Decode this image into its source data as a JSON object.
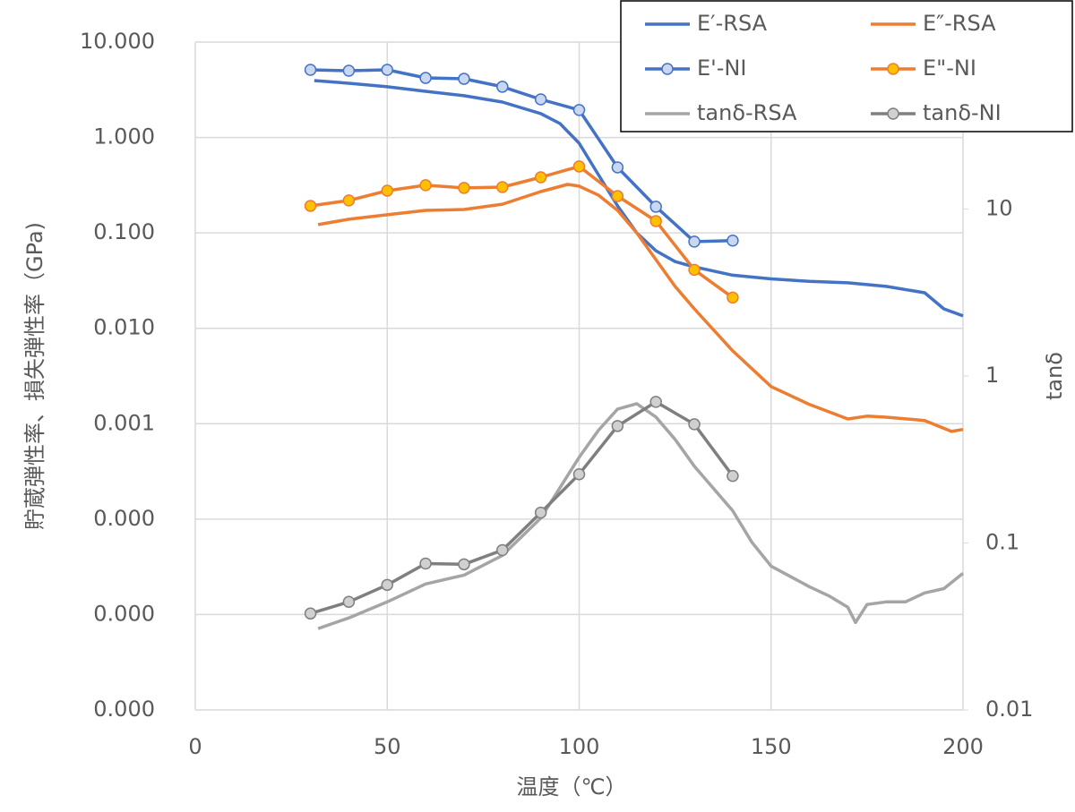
{
  "chart_data": {
    "type": "line",
    "xlabel": "温度（℃）",
    "ylabel": "貯蔵弾性率、損失弾性率（GPa)",
    "y2label": "tanδ",
    "xlim": [
      0,
      200
    ],
    "xticks": [
      0,
      50,
      100,
      150,
      200
    ],
    "ylog": true,
    "ylim": [
      1e-06,
      10
    ],
    "yticks": [
      {
        "value": 10,
        "label": "10.000"
      },
      {
        "value": 1,
        "label": "1.000"
      },
      {
        "value": 0.1,
        "label": "0.100"
      },
      {
        "value": 0.01,
        "label": "0.010"
      },
      {
        "value": 0.001,
        "label": "0.001"
      },
      {
        "value": 0.0001,
        "label": "0.000"
      },
      {
        "value": 1e-05,
        "label": "0.000"
      },
      {
        "value": 1e-06,
        "label": "0.000"
      }
    ],
    "y2log": true,
    "y2lim": [
      0.01,
      100
    ],
    "y2ticks": [
      10,
      1,
      0.1,
      0.01
    ],
    "grid": true,
    "legend": "top-right",
    "series": [
      {
        "name": "E′-RSA",
        "color": "#4472c4",
        "axis": "y",
        "markers": false,
        "x": [
          31,
          40,
          50,
          60,
          70,
          80,
          90,
          95,
          100,
          105,
          110,
          115,
          120,
          125,
          130,
          140,
          150,
          160,
          170,
          180,
          190,
          195,
          200
        ],
        "values": [
          3.95,
          3.7,
          3.4,
          3.05,
          2.74,
          2.35,
          1.78,
          1.4,
          0.871,
          0.409,
          0.192,
          0.1,
          0.065,
          0.05,
          0.044,
          0.036,
          0.033,
          0.031,
          0.03,
          0.0275,
          0.0236,
          0.016,
          0.0135
        ]
      },
      {
        "name": "E″-RSA",
        "color": "#ed7d31",
        "axis": "y",
        "markers": false,
        "x": [
          32,
          40,
          50,
          60,
          70,
          80,
          90,
          97,
          100,
          105,
          110,
          115,
          120,
          125,
          130,
          140,
          150,
          160,
          170,
          175,
          180,
          190,
          197,
          200
        ],
        "values": [
          0.122,
          0.139,
          0.155,
          0.172,
          0.176,
          0.2,
          0.271,
          0.322,
          0.309,
          0.249,
          0.172,
          0.1,
          0.0525,
          0.0275,
          0.016,
          0.0058,
          0.00245,
          0.00159,
          0.00112,
          0.0012,
          0.00117,
          0.00108,
          0.00083,
          0.00087
        ]
      },
      {
        "name": "E'-NI",
        "color": "#4472c4",
        "marker_color": "#c9d8f0",
        "axis": "y",
        "markers": true,
        "x": [
          30,
          40,
          50,
          60,
          70,
          80,
          90,
          100,
          110,
          120,
          130,
          140
        ],
        "values": [
          5.12,
          5.01,
          5.12,
          4.21,
          4.12,
          3.4,
          2.51,
          1.94,
          0.486,
          0.188,
          0.081,
          0.083
        ]
      },
      {
        "name": "E\"-NI",
        "color": "#ed7d31",
        "marker_color": "#ffc000",
        "axis": "y",
        "markers": true,
        "x": [
          30,
          40,
          50,
          60,
          70,
          80,
          90,
          100,
          110,
          120,
          130,
          140
        ],
        "values": [
          0.192,
          0.219,
          0.277,
          0.316,
          0.296,
          0.302,
          0.383,
          0.497,
          0.243,
          0.133,
          0.041,
          0.021
        ]
      },
      {
        "name": "tanδ-RSA",
        "color": "#a5a5a5",
        "axis": "y2",
        "markers": false,
        "x": [
          32,
          40,
          50,
          60,
          70,
          80,
          90,
          100,
          105,
          110,
          115,
          120,
          125,
          130,
          140,
          145,
          150,
          160,
          165,
          170,
          172,
          175,
          180,
          185,
          190,
          195,
          200
        ],
        "values": [
          0.0307,
          0.0356,
          0.0444,
          0.0568,
          0.0642,
          0.0842,
          0.141,
          0.326,
          0.472,
          0.634,
          0.683,
          0.568,
          0.417,
          0.288,
          0.156,
          0.101,
          0.0726,
          0.0547,
          0.0483,
          0.0412,
          0.0334,
          0.0428,
          0.0444,
          0.0444,
          0.0502,
          0.0533,
          0.0658
        ]
      },
      {
        "name": "tanδ-NI",
        "color": "#7f7f7f",
        "marker_color": "#d0d0d0",
        "axis": "y2",
        "markers": true,
        "x": [
          30,
          40,
          50,
          60,
          70,
          80,
          90,
          100,
          110,
          120,
          130,
          140
        ],
        "values": [
          0.0378,
          0.0444,
          0.0561,
          0.0753,
          0.0745,
          0.0906,
          0.152,
          0.258,
          0.502,
          0.7,
          0.514,
          0.252
        ]
      }
    ]
  }
}
